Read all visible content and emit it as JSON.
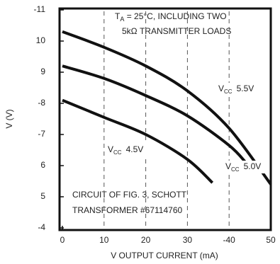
{
  "chart_data": {
    "type": "line",
    "x_label": "V OUTPUT CURRENT (mA)",
    "y_label": "V (V)",
    "xlim": [
      0,
      50
    ],
    "xticks": [
      0,
      10,
      20,
      30,
      {
        "value": 40,
        "label": "-40"
      },
      50
    ],
    "ylim": [
      4,
      11
    ],
    "yticks": [
      {
        "value": 4,
        "label": "-4"
      },
      5,
      6,
      {
        "value": 7,
        "label": "-7"
      },
      {
        "value": 8,
        "label": "-8"
      },
      9,
      10,
      {
        "value": 11,
        "label": "-11"
      }
    ],
    "grid": true,
    "series": [
      {
        "label": {
          "main": "V",
          "sub": "CC",
          "value": "5.5V"
        },
        "color": "#111111",
        "x": [
          0,
          10,
          20,
          30,
          40,
          50
        ],
        "values": [
          10.3,
          9.8,
          9.2,
          8.4,
          7.2,
          5.4
        ]
      },
      {
        "label": {
          "main": "V",
          "sub": "CC",
          "value": "5.0V"
        },
        "color": "#111111",
        "x": [
          0,
          10,
          20,
          30,
          40,
          44
        ],
        "values": [
          9.2,
          8.8,
          8.25,
          7.6,
          6.65,
          6.1
        ]
      },
      {
        "label": {
          "main": "V",
          "sub": "CC",
          "value": "4.5V"
        },
        "color": "#111111",
        "x": [
          0,
          10,
          20,
          30,
          36
        ],
        "values": [
          8.1,
          7.55,
          7.0,
          6.2,
          5.45
        ]
      }
    ],
    "conditions": {
      "main": "T",
      "sub": "A",
      "rest": " = 25°C, INCLUDING TWO",
      "line2": "5kΩ TRANSMITTER LOADS"
    },
    "note": [
      "CIRCUIT OF FIG. 3, SCHOTT",
      "TRANSFORMER  #67114760"
    ]
  }
}
